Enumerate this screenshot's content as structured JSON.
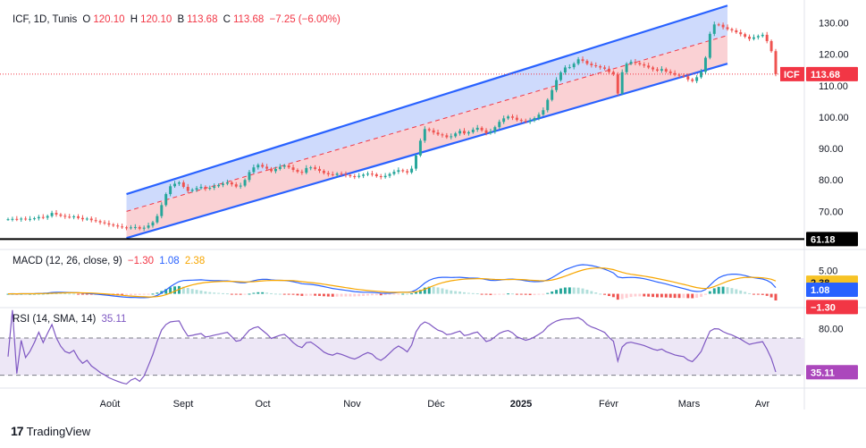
{
  "header": {
    "symbol": "ICF, 1D, Tunis",
    "o_label": "O",
    "o_value": "120.10",
    "h_label": "H",
    "h_value": "120.10",
    "b_label": "B",
    "b_value": "113.68",
    "c_label": "C",
    "c_value": "113.68",
    "change": "−7.25 (−6.00%)"
  },
  "macd_header": {
    "label": "MACD (12, 26, close, 9)",
    "hist": "−1.30",
    "macd": "1.08",
    "signal": "2.38"
  },
  "rsi_header": {
    "label": "RSI (14, SMA, 14)",
    "value": "35.11"
  },
  "footer": {
    "brand": "TradingView"
  },
  "colors": {
    "up": "#26a69a",
    "down": "#ef5350",
    "channel_line": "#2962ff",
    "channel_upper_fill": "#c5d4fb",
    "channel_lower_fill": "#f9c9cc",
    "macd_line": "#2962ff",
    "signal_line": "#f7a600",
    "rsi_line": "#7e57c2",
    "rsi_band": "#ede7f6",
    "rsi_badge": "#ab47bc",
    "price_badge": "#f23645"
  },
  "chart_data": [
    {
      "type": "candlestick",
      "name": "price",
      "x_ticks": [
        "Août",
        "Sept",
        "Oct",
        "Nov",
        "Déc",
        "2025",
        "Févr",
        "Mars",
        "Avr"
      ],
      "y_ticks": [
        70,
        80,
        90,
        100,
        110,
        120,
        130
      ],
      "ylim": [
        61,
        135
      ],
      "last_close": 113.68,
      "symbol_tag": "ICF",
      "last_price_label": "113.68",
      "support_level": 61.18,
      "support_label": "61.18",
      "channel": {
        "start": {
          "bar": 27,
          "upper": 75.5,
          "mid": 70.0,
          "lower": 61.5
        },
        "end": {
          "bar": 164,
          "upper": 135.5,
          "mid": 126.0,
          "lower": 117.0
        }
      },
      "closes": [
        67.5,
        67.6,
        67.4,
        67.7,
        67.5,
        67.6,
        67.8,
        68.2,
        68.0,
        68.5,
        69.5,
        69.0,
        68.6,
        68.3,
        68.2,
        68.4,
        67.9,
        67.5,
        67.7,
        67.2,
        66.9,
        66.5,
        66.2,
        65.8,
        65.5,
        65.2,
        64.9,
        64.7,
        64.9,
        65.0,
        64.5,
        64.8,
        65.5,
        66.5,
        68.5,
        72.0,
        75.5,
        78.0,
        78.8,
        79.2,
        77.8,
        76.5,
        76.9,
        77.4,
        77.8,
        77.2,
        77.5,
        78.0,
        78.4,
        78.8,
        79.2,
        78.6,
        77.9,
        78.2,
        80.0,
        82.5,
        84.0,
        84.8,
        84.2,
        83.6,
        82.8,
        83.5,
        84.2,
        84.6,
        84.0,
        83.2,
        82.6,
        82.3,
        83.8,
        84.0,
        83.5,
        82.9,
        82.2,
        81.8,
        81.6,
        82.0,
        81.8,
        81.5,
        81.2,
        81.0,
        81.3,
        81.7,
        82.0,
        81.8,
        81.2,
        80.9,
        81.3,
        81.9,
        82.6,
        83.1,
        82.8,
        82.4,
        83.6,
        87.8,
        92.5,
        96.2,
        95.8,
        95.1,
        94.5,
        94.2,
        93.6,
        93.9,
        94.8,
        95.6,
        94.8,
        95.2,
        96.0,
        96.6,
        95.8,
        94.9,
        95.4,
        96.8,
        98.5,
        99.6,
        100.2,
        99.8,
        99.1,
        98.8,
        98.5,
        98.9,
        99.7,
        100.8,
        102.2,
        105.5,
        108.6,
        111.8,
        114.2,
        115.8,
        115.9,
        117.0,
        118.4,
        117.9,
        117.0,
        116.5,
        116.2,
        115.8,
        115.4,
        114.4,
        113.6,
        107.5,
        114.3,
        117.0,
        117.6,
        117.2,
        116.8,
        116.4,
        115.8,
        115.2,
        114.8,
        115.3,
        114.5,
        114.0,
        113.5,
        113.2,
        113.0,
        112.0,
        111.5,
        112.7,
        114.4,
        118.9,
        126.5,
        129.5,
        129.4,
        128.6,
        128.0,
        127.6,
        127.0,
        126.4,
        125.6,
        124.9,
        125.4,
        125.8,
        126.2,
        124.2,
        121.0,
        113.7
      ]
    },
    {
      "type": "macd",
      "name": "MACD (12, 26, close, 9)",
      "y_ticks": [
        5.0
      ],
      "y_tick_labels": [
        "5.00"
      ],
      "last_macd": 1.08,
      "last_signal": 2.38,
      "last_hist": -1.3
    },
    {
      "type": "line",
      "name": "RSI (14, SMA, 14)",
      "y_ticks": [
        80.0
      ],
      "y_tick_labels": [
        "80.00"
      ],
      "upper_band": 70,
      "lower_band": 30,
      "ylim": [
        20,
        95
      ],
      "last_value": 35.11
    }
  ]
}
